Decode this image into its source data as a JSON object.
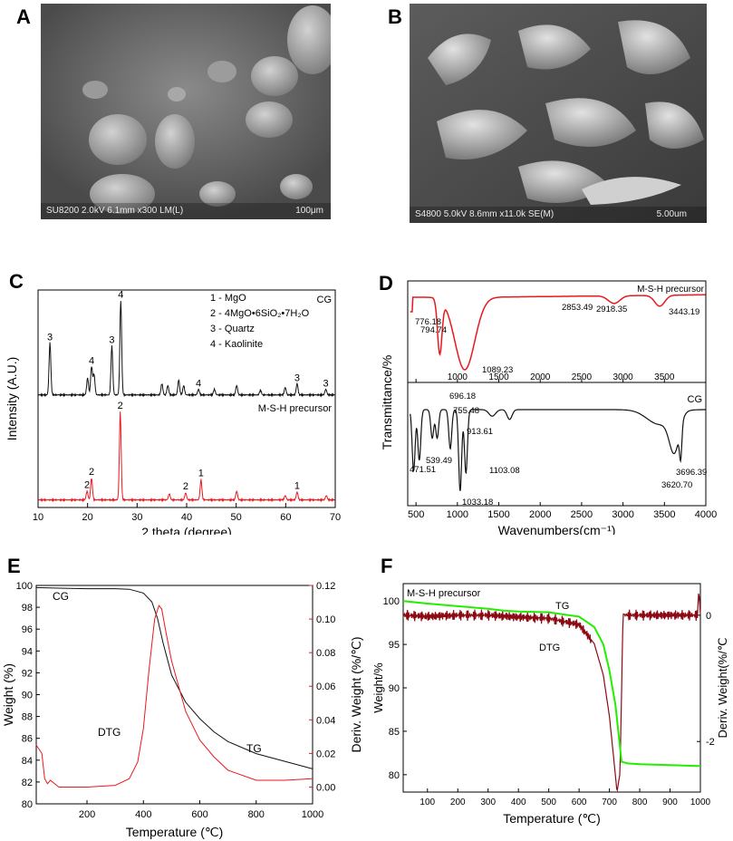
{
  "panels": {
    "A": "A",
    "B": "B",
    "C": "C",
    "D": "D",
    "E": "E",
    "F": "F"
  },
  "sem": {
    "A": {
      "info": "SU8200 2.0kV 6.1mm x300 LM(L)",
      "scale": "100μm"
    },
    "B": {
      "info": "S4800 5.0kV 8.6mm x11.0k SE(M)",
      "scale": "5.00um"
    }
  },
  "colors": {
    "black": "#111111",
    "red": "#e8191e",
    "green": "#22ee00",
    "darkred": "#8b0a14"
  },
  "chart_data": [
    {
      "panel": "C",
      "type": "line",
      "xlabel": "2 theta (degree)",
      "ylabel": "Intensity (A.U.)",
      "xlim": [
        10,
        70
      ],
      "xticks": [
        "10",
        "20",
        "30",
        "40",
        "50",
        "60",
        "70"
      ],
      "legend": [
        "1 - MgO",
        "2 - 4MgO•6SiO₂•7H₂O",
        "3 - Quartz",
        "4 - Kaolinite"
      ],
      "series": [
        {
          "name": "CG",
          "color": "#111111",
          "baseline": 0.3,
          "peaks": [
            [
              12.4,
              0.55
            ],
            [
              20.0,
              0.18
            ],
            [
              20.8,
              0.3
            ],
            [
              21.3,
              0.22
            ],
            [
              24.9,
              0.52
            ],
            [
              26.7,
              1.0
            ],
            [
              35.0,
              0.12
            ],
            [
              36.2,
              0.1
            ],
            [
              38.4,
              0.16
            ],
            [
              39.4,
              0.1
            ],
            [
              42.4,
              0.06
            ],
            [
              45.6,
              0.06
            ],
            [
              50.1,
              0.1
            ],
            [
              54.9,
              0.05
            ],
            [
              59.9,
              0.08
            ],
            [
              62.3,
              0.12
            ],
            [
              68.1,
              0.06
            ]
          ],
          "annotations": [
            {
              "x": 12.4,
              "label": "3"
            },
            {
              "x": 20.8,
              "label": "4"
            },
            {
              "x": 24.9,
              "label": "3"
            },
            {
              "x": 26.7,
              "label": "4"
            },
            {
              "x": 42.4,
              "label": "4"
            },
            {
              "x": 62.3,
              "label": "3"
            },
            {
              "x": 68.1,
              "label": "3"
            }
          ]
        },
        {
          "name": "M-S-H precursor",
          "color": "#e8191e",
          "baseline": 0.0,
          "peaks": [
            [
              19.9,
              0.1
            ],
            [
              20.8,
              0.25
            ],
            [
              26.6,
              1.0
            ],
            [
              36.5,
              0.07
            ],
            [
              39.8,
              0.08
            ],
            [
              42.9,
              0.23
            ],
            [
              50.1,
              0.1
            ],
            [
              59.9,
              0.05
            ],
            [
              62.3,
              0.09
            ],
            [
              68.2,
              0.05
            ]
          ],
          "annotations": [
            {
              "x": 19.9,
              "label": "2"
            },
            {
              "x": 20.8,
              "label": "2"
            },
            {
              "x": 26.6,
              "label": "2"
            },
            {
              "x": 39.8,
              "label": "2"
            },
            {
              "x": 42.9,
              "label": "1"
            },
            {
              "x": 62.3,
              "label": "1"
            }
          ]
        }
      ]
    },
    {
      "panel": "D",
      "type": "line",
      "xlabel": "Wavenumbers(cm⁻¹)",
      "ylabel": "Transmittance/%",
      "xlim": [
        400,
        4000
      ],
      "xticks": [
        "500",
        "1000",
        "1500",
        "2000",
        "2500",
        "3000",
        "3500",
        "4000"
      ],
      "series": [
        {
          "name": "M-S-H precursor",
          "color": "#e8191e",
          "labels": [
            "776.18",
            "794.74",
            "1089.23",
            "2853.49",
            "2918.35",
            "3443.19"
          ],
          "bands": [
            [
              776.18,
              0.35
            ],
            [
              794.74,
              0.45
            ],
            [
              1089.23,
              1.0
            ],
            [
              2853.49,
              0.05
            ],
            [
              2918.35,
              0.07
            ],
            [
              3443.19,
              0.15
            ]
          ]
        },
        {
          "name": "CG",
          "color": "#111111",
          "labels": [
            "696.18",
            "755.48",
            "913.61",
            "471.51",
            "539.49",
            "1103.08",
            "1033.18",
            "3620.70",
            "3696.39"
          ],
          "bands": [
            [
              471.51,
              0.75
            ],
            [
              539.49,
              0.62
            ],
            [
              696.18,
              0.35
            ],
            [
              755.48,
              0.35
            ],
            [
              913.61,
              0.48
            ],
            [
              1033.18,
              1.0
            ],
            [
              1103.08,
              0.78
            ],
            [
              3620.7,
              0.45
            ],
            [
              3696.39,
              0.38
            ]
          ]
        }
      ]
    },
    {
      "panel": "E",
      "type": "line",
      "xlabel": "Temperature (℃)",
      "ylabel": "Weight (%)",
      "y2label": "Deriv. Weight (%/℃)",
      "xlim": [
        20,
        1000
      ],
      "ylim": [
        80,
        100
      ],
      "y2lim": [
        -0.01,
        0.12
      ],
      "xticks": [
        "200",
        "400",
        "600",
        "800",
        "1000"
      ],
      "yticks": [
        "80",
        "82",
        "84",
        "86",
        "88",
        "90",
        "92",
        "94",
        "96",
        "98",
        "100"
      ],
      "y2ticks": [
        "0.00",
        "0.02",
        "0.04",
        "0.06",
        "0.08",
        "0.10",
        "0.12"
      ],
      "series": [
        {
          "name": "CG",
          "label": "CG",
          "color": "#111111",
          "x": [
            20,
            100,
            200,
            300,
            350,
            400,
            430,
            450,
            470,
            500,
            550,
            600,
            650,
            700,
            800,
            900,
            1000
          ],
          "y": [
            99.8,
            99.75,
            99.7,
            99.7,
            99.65,
            99.3,
            98.5,
            97.0,
            94.7,
            91.8,
            89.3,
            87.8,
            86.6,
            85.7,
            84.6,
            83.9,
            83.2
          ]
        },
        {
          "name": "TG",
          "label": "TG",
          "color": "#111111",
          "x": [],
          "y": []
        },
        {
          "name": "DTG",
          "label": "DTG",
          "color": "#e8191e",
          "axis": "right",
          "x": [
            20,
            40,
            50,
            60,
            70,
            100,
            200,
            300,
            350,
            380,
            400,
            420,
            440,
            455,
            465,
            480,
            500,
            550,
            600,
            650,
            700,
            800,
            900,
            1000
          ],
          "y": [
            0.025,
            0.02,
            0.005,
            0.002,
            0.004,
            0.0,
            0.0,
            0.001,
            0.005,
            0.015,
            0.035,
            0.07,
            0.1,
            0.108,
            0.106,
            0.092,
            0.075,
            0.045,
            0.028,
            0.018,
            0.01,
            0.004,
            0.004,
            0.005
          ]
        }
      ]
    },
    {
      "panel": "F",
      "type": "line",
      "title": "M-S-H precursor",
      "xlabel": "Temperature (℃)",
      "ylabel": "Weight/%",
      "y2label": "Deriv. Weight(%/℃",
      "xlim": [
        20,
        1000
      ],
      "ylim": [
        78,
        102
      ],
      "y2lim": [
        -2.8,
        0.5
      ],
      "xticks": [
        "100",
        "200",
        "300",
        "400",
        "500",
        "600",
        "700",
        "800",
        "900",
        "1000"
      ],
      "yticks": [
        "80",
        "85",
        "90",
        "95",
        "100"
      ],
      "y2ticks": [
        "0",
        "-2"
      ],
      "series": [
        {
          "name": "TG",
          "color": "#22ee00",
          "x": [
            20,
            100,
            200,
            300,
            350,
            400,
            500,
            600,
            650,
            680,
            700,
            720,
            740,
            760,
            800,
            900,
            1000
          ],
          "y": [
            100,
            99.7,
            99.4,
            99.1,
            98.9,
            98.8,
            98.7,
            98.2,
            97.0,
            95.0,
            92.0,
            88.0,
            81.5,
            81.3,
            81.2,
            81.1,
            81.0
          ]
        },
        {
          "name": "DTG",
          "color": "#8b0a14",
          "axis": "right",
          "x": [
            20,
            100,
            200,
            300,
            400,
            500,
            600,
            650,
            680,
            700,
            715,
            725,
            735,
            745,
            760,
            800,
            900,
            990,
            995,
            1000
          ],
          "y": [
            0.0,
            -0.02,
            0.0,
            0.0,
            -0.03,
            -0.05,
            -0.15,
            -0.45,
            -0.95,
            -1.6,
            -2.3,
            -2.8,
            -2.5,
            0.02,
            0.0,
            0.0,
            0.0,
            0.0,
            0.4,
            0.0
          ]
        }
      ]
    }
  ]
}
